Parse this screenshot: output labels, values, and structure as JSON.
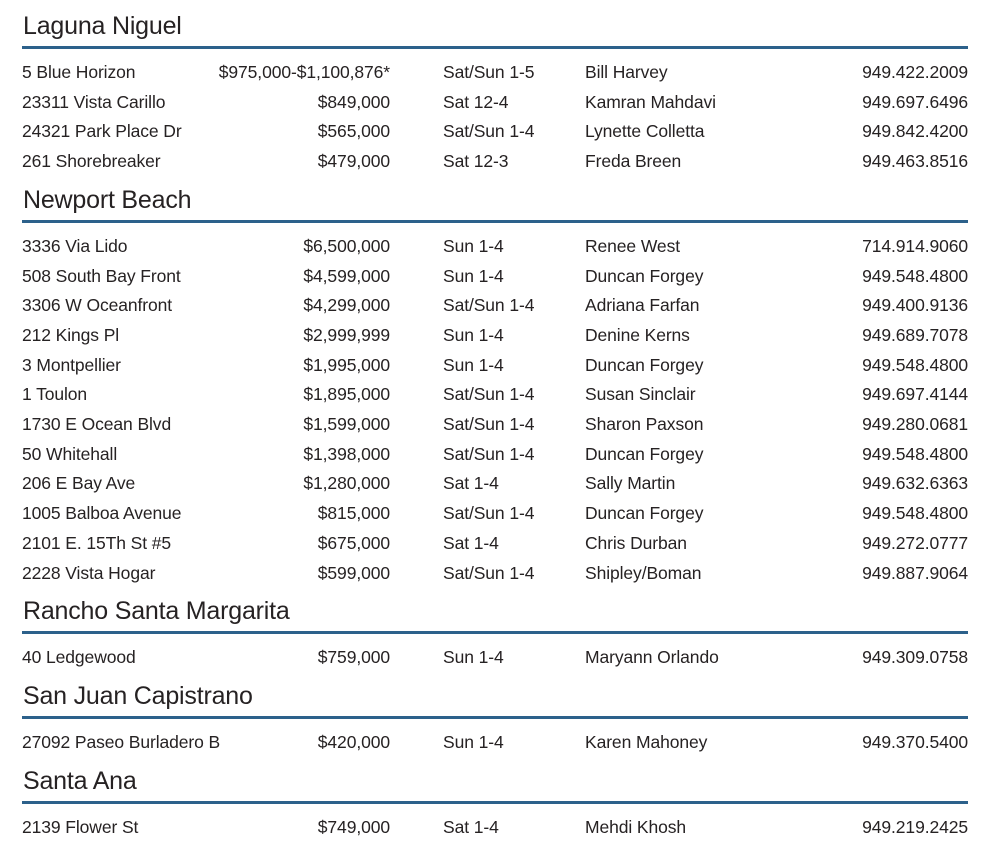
{
  "page": {
    "kind": "open-house-listings-by-city",
    "background_color": "#ffffff",
    "text_color": "#262223",
    "rule_color": "#2c618b"
  },
  "sections": [
    {
      "city": "Laguna Niguel",
      "listings": [
        {
          "address": "5 Blue Horizon",
          "price": "$975,000-$1,100,876*",
          "time": "Sat/Sun 1-5",
          "agent": "Bill Harvey",
          "phone": "949.422.2009"
        },
        {
          "address": "23311 Vista Carillo",
          "price": "$849,000",
          "time": "Sat 12-4",
          "agent": "Kamran Mahdavi",
          "phone": "949.697.6496"
        },
        {
          "address": "24321 Park Place Dr",
          "price": "$565,000",
          "time": "Sat/Sun 1-4",
          "agent": "Lynette Colletta",
          "phone": "949.842.4200"
        },
        {
          "address": "261 Shorebreaker",
          "price": "$479,000",
          "time": "Sat 12-3",
          "agent": "Freda Breen",
          "phone": "949.463.8516"
        }
      ]
    },
    {
      "city": "Newport Beach",
      "listings": [
        {
          "address": "3336 Via Lido",
          "price": "$6,500,000",
          "time": "Sun 1-4",
          "agent": "Renee West",
          "phone": "714.914.9060"
        },
        {
          "address": "508 South Bay Front",
          "price": "$4,599,000",
          "time": "Sun 1-4",
          "agent": "Duncan Forgey",
          "phone": "949.548.4800"
        },
        {
          "address": "3306 W Oceanfront",
          "price": "$4,299,000",
          "time": "Sat/Sun 1-4",
          "agent": "Adriana Farfan",
          "phone": "949.400.9136"
        },
        {
          "address": "212 Kings Pl",
          "price": "$2,999,999",
          "time": "Sun 1-4",
          "agent": "Denine Kerns",
          "phone": "949.689.7078"
        },
        {
          "address": "3 Montpellier",
          "price": "$1,995,000",
          "time": "Sun 1-4",
          "agent": "Duncan Forgey",
          "phone": "949.548.4800"
        },
        {
          "address": "1 Toulon",
          "price": "$1,895,000",
          "time": "Sat/Sun 1-4",
          "agent": "Susan Sinclair",
          "phone": "949.697.4144"
        },
        {
          "address": "1730 E Ocean Blvd",
          "price": "$1,599,000",
          "time": "Sat/Sun 1-4",
          "agent": "Sharon Paxson",
          "phone": "949.280.0681"
        },
        {
          "address": "50 Whitehall",
          "price": "$1,398,000",
          "time": "Sat/Sun 1-4",
          "agent": "Duncan Forgey",
          "phone": "949.548.4800"
        },
        {
          "address": "206 E Bay Ave",
          "price": "$1,280,000",
          "time": "Sat 1-4",
          "agent": "Sally Martin",
          "phone": "949.632.6363"
        },
        {
          "address": "1005 Balboa Avenue",
          "price": "$815,000",
          "time": "Sat/Sun 1-4",
          "agent": "Duncan Forgey",
          "phone": "949.548.4800"
        },
        {
          "address": "2101 E. 15Th St #5",
          "price": "$675,000",
          "time": "Sat 1-4",
          "agent": "Chris Durban",
          "phone": "949.272.0777"
        },
        {
          "address": "2228 Vista Hogar",
          "price": "$599,000",
          "time": "Sat/Sun 1-4",
          "agent": "Shipley/Boman",
          "phone": "949.887.9064"
        }
      ]
    },
    {
      "city": "Rancho Santa Margarita",
      "listings": [
        {
          "address": "40 Ledgewood",
          "price": "$759,000",
          "time": "Sun 1-4",
          "agent": "Maryann Orlando",
          "phone": "949.309.0758"
        }
      ]
    },
    {
      "city": "San Juan Capistrano",
      "listings": [
        {
          "address": "27092 Paseo Burladero B",
          "price": "$420,000",
          "time": "Sun 1-4",
          "agent": "Karen Mahoney",
          "phone": "949.370.5400"
        }
      ]
    },
    {
      "city": "Santa Ana",
      "listings": [
        {
          "address": "2139 Flower St",
          "price": "$749,000",
          "time": "Sat 1-4",
          "agent": "Mehdi Khosh",
          "phone": "949.219.2425"
        }
      ]
    }
  ]
}
